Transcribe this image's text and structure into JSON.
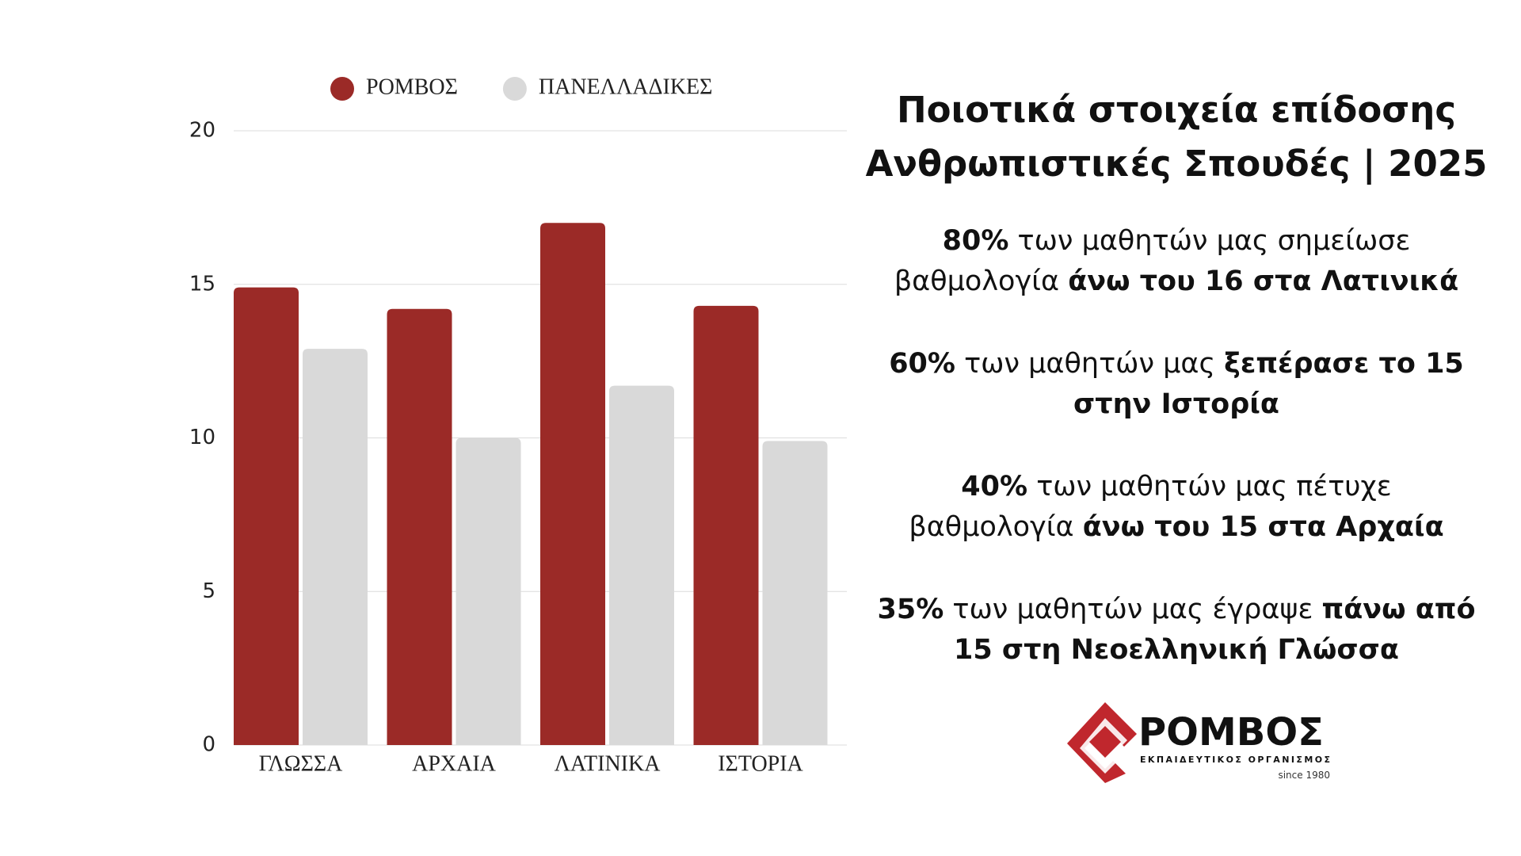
{
  "chart_data": {
    "type": "bar",
    "categories": [
      "ΓΛΩΣΣΑ",
      "ΑΡΧΑΙΑ",
      "ΛΑΤΙΝΙΚΑ",
      "ΙΣΤΟΡΙΑ"
    ],
    "series": [
      {
        "name": "ΡΟΜΒΟΣ",
        "color": "#9b2a27",
        "values": [
          14.9,
          14.2,
          17,
          14.3
        ]
      },
      {
        "name": "ΠΑΝΕΛΛΑΔΙΚΕΣ",
        "color": "#d9d9d9",
        "values": [
          12.9,
          10,
          11.7,
          9.9
        ]
      }
    ],
    "ylim": [
      0,
      20
    ],
    "yticks": [
      0,
      5,
      10,
      15,
      20
    ],
    "grid": true,
    "legend": "top"
  },
  "text": {
    "title": [
      "Ποιοτικά στοιχεία επίδοσης",
      "Ανθρωπιστικές Σπουδές | 2025"
    ],
    "items": [
      [
        {
          "text": "80%",
          "bold": true
        },
        {
          "text": " των μαθητών μας σημείωσε βαθμολογία ",
          "bold": false
        },
        {
          "text": "άνω του 16 στα Λατινικά",
          "bold": true
        }
      ],
      [
        {
          "text": "60%",
          "bold": true
        },
        {
          "text": " των μαθητών μας ",
          "bold": false
        },
        {
          "text": "ξεπέρασε το 15 στην Ιστορία",
          "bold": true
        }
      ],
      [
        {
          "text": "40%",
          "bold": true
        },
        {
          "text": " των μαθητών μας πέτυχε βαθμολογία ",
          "bold": false
        },
        {
          "text": "άνω του 15 στα Αρχαία",
          "bold": true
        }
      ],
      [
        {
          "text": "35%",
          "bold": true
        },
        {
          "text": " των μαθητών μας έγραψε ",
          "bold": false
        },
        {
          "text": "πάνω από 15 στη Νεοελληνική Γλώσσα",
          "bold": true
        }
      ]
    ]
  },
  "logo": {
    "name": "ΡΟΜΒΟΣ",
    "tagline": "ΕΚΠΑΙΔΕΥΤΙΚΟΣ ΟΡΓΑΝΙΣΜΟΣ",
    "since": "since 1980"
  }
}
